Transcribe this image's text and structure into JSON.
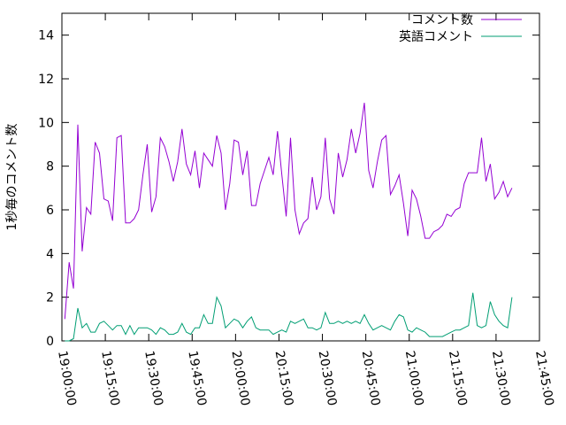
{
  "chart_data": {
    "type": "line",
    "ylabel": "1秒毎のコメント数",
    "xlim": [
      "19:00:00",
      "21:45:00"
    ],
    "xticks": [
      "19:00:00",
      "19:15:00",
      "19:30:00",
      "19:45:00",
      "20:00:00",
      "20:15:00",
      "20:30:00",
      "20:45:00",
      "21:00:00",
      "21:15:00",
      "21:30:00",
      "21:45:00"
    ],
    "ylim": [
      0,
      15
    ],
    "yticks": [
      0,
      2,
      4,
      6,
      8,
      10,
      12,
      14
    ],
    "legend": "top-right",
    "x": [
      "19:01:00",
      "19:02:30",
      "19:04:00",
      "19:05:30",
      "19:07:00",
      "19:08:30",
      "19:10:00",
      "19:11:30",
      "19:13:00",
      "19:14:30",
      "19:16:00",
      "19:17:30",
      "19:19:00",
      "19:20:30",
      "19:22:00",
      "19:23:30",
      "19:25:00",
      "19:26:30",
      "19:28:00",
      "19:29:30",
      "19:31:00",
      "19:32:30",
      "19:34:00",
      "19:35:30",
      "19:37:00",
      "19:38:30",
      "19:40:00",
      "19:41:30",
      "19:43:00",
      "19:44:30",
      "19:46:00",
      "19:47:30",
      "19:49:00",
      "19:50:30",
      "19:52:00",
      "19:53:30",
      "19:55:00",
      "19:56:30",
      "19:58:00",
      "19:59:30",
      "20:01:00",
      "20:02:30",
      "20:04:00",
      "20:05:30",
      "20:07:00",
      "20:08:30",
      "20:10:00",
      "20:11:30",
      "20:13:00",
      "20:14:30",
      "20:16:00",
      "20:17:30",
      "20:19:00",
      "20:20:30",
      "20:22:00",
      "20:23:30",
      "20:25:00",
      "20:26:30",
      "20:28:00",
      "20:29:30",
      "20:31:00",
      "20:32:30",
      "20:34:00",
      "20:35:30",
      "20:37:00",
      "20:38:30",
      "20:40:00",
      "20:41:30",
      "20:43:00",
      "20:44:30",
      "20:46:00",
      "20:47:30",
      "20:49:00",
      "20:50:30",
      "20:52:00",
      "20:53:30",
      "20:55:00",
      "20:56:30",
      "20:58:00",
      "20:59:30",
      "21:01:00",
      "21:02:30",
      "21:04:00",
      "21:05:30",
      "21:07:00",
      "21:08:30",
      "21:10:00",
      "21:11:30",
      "21:13:00",
      "21:14:30",
      "21:16:00",
      "21:17:30",
      "21:19:00",
      "21:20:30",
      "21:22:00",
      "21:23:30",
      "21:25:00",
      "21:26:30",
      "21:28:00",
      "21:29:30",
      "21:31:00",
      "21:32:30",
      "21:34:00",
      "21:35:30"
    ],
    "series": [
      {
        "name": "コメント数",
        "color": "#9400d3",
        "values": [
          1.0,
          3.6,
          2.4,
          9.9,
          4.1,
          6.1,
          5.8,
          9.1,
          8.6,
          6.5,
          6.4,
          5.5,
          9.3,
          9.4,
          5.4,
          5.4,
          5.6,
          6.0,
          7.6,
          9.0,
          5.9,
          6.6,
          9.3,
          8.9,
          8.2,
          7.3,
          8.2,
          9.7,
          8.1,
          7.6,
          8.7,
          7.0,
          8.6,
          8.3,
          8.0,
          9.4,
          8.6,
          6.0,
          7.2,
          9.2,
          9.1,
          7.6,
          8.7,
          6.2,
          6.2,
          7.2,
          7.8,
          8.4,
          7.6,
          9.6,
          7.6,
          5.7,
          9.3,
          6.0,
          4.9,
          5.4,
          5.6,
          7.5,
          6.0,
          6.6,
          9.3,
          6.5,
          5.8,
          8.6,
          7.5,
          8.3,
          9.7,
          8.6,
          9.5,
          10.9,
          7.8,
          7.0,
          8.2,
          9.2,
          9.4,
          6.7,
          7.1,
          7.6,
          6.3,
          4.8,
          6.9,
          6.5,
          5.7,
          4.7,
          4.7,
          5.0,
          5.1,
          5.3,
          5.8,
          5.7,
          6.0,
          6.1,
          7.2,
          7.7,
          7.7,
          7.7,
          9.3,
          7.3,
          8.1,
          6.5,
          6.8,
          7.3,
          6.6,
          7.0
        ]
      },
      {
        "name": "英語コメント",
        "color": "#009e73",
        "values": [
          0.0,
          0.0,
          0.1,
          1.5,
          0.6,
          0.8,
          0.4,
          0.4,
          0.8,
          0.9,
          0.7,
          0.5,
          0.7,
          0.7,
          0.3,
          0.7,
          0.3,
          0.6,
          0.6,
          0.6,
          0.5,
          0.3,
          0.6,
          0.5,
          0.3,
          0.3,
          0.4,
          0.8,
          0.4,
          0.3,
          0.6,
          0.6,
          1.2,
          0.8,
          0.8,
          2.0,
          1.6,
          0.6,
          0.8,
          1.0,
          0.9,
          0.6,
          0.9,
          1.1,
          0.6,
          0.5,
          0.5,
          0.5,
          0.3,
          0.4,
          0.5,
          0.4,
          0.9,
          0.8,
          0.9,
          1.0,
          0.6,
          0.6,
          0.5,
          0.6,
          1.3,
          0.8,
          0.8,
          0.9,
          0.8,
          0.9,
          0.8,
          0.9,
          0.8,
          1.2,
          0.8,
          0.5,
          0.6,
          0.7,
          0.6,
          0.5,
          0.9,
          1.2,
          1.1,
          0.5,
          0.4,
          0.6,
          0.5,
          0.4,
          0.2,
          0.2,
          0.2,
          0.2,
          0.3,
          0.4,
          0.5,
          0.5,
          0.6,
          0.7,
          2.2,
          0.7,
          0.6,
          0.7,
          1.8,
          1.2,
          0.9,
          0.7,
          0.6,
          2.0
        ]
      }
    ]
  }
}
